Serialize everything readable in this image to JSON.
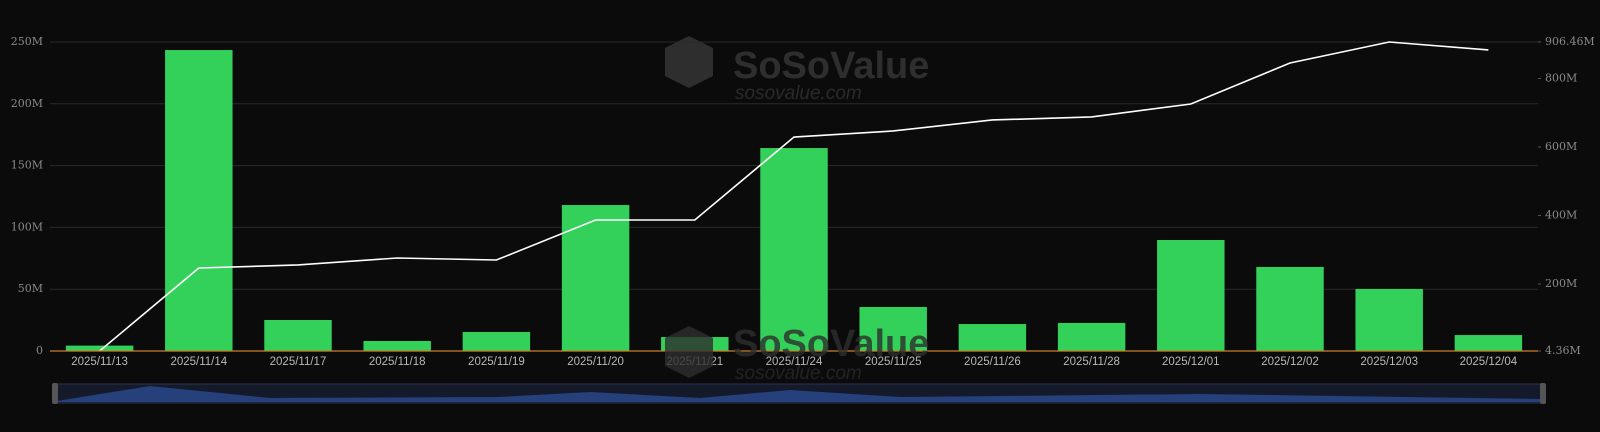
{
  "chart_data": {
    "type": "bar",
    "watermark": "SoSoValue",
    "watermark_url": "sosovalue.com",
    "categories": [
      "2025/11/13",
      "2025/11/14",
      "2025/11/17",
      "2025/11/18",
      "2025/11/19",
      "2025/11/20",
      "2025/11/21",
      "2025/11/24",
      "2025/11/25",
      "2025/11/26",
      "2025/11/28",
      "2025/12/01",
      "2025/12/02",
      "2025/12/03",
      "2025/12/04"
    ],
    "series": [
      {
        "type": "bar",
        "color": "#33d159",
        "values": [
          4.36,
          243.5,
          25.1,
          8.1,
          15.4,
          118.1,
          11.3,
          164.2,
          35.6,
          21.8,
          22.7,
          89.8,
          68.0,
          50.2,
          12.9
        ]
      },
      {
        "type": "line",
        "axis": "y2",
        "color": "#ffffff",
        "values": [
          4.36,
          246.7,
          255.5,
          275.9,
          270,
          386.8,
          386.8,
          629,
          646.7,
          678.8,
          687.6,
          725.5,
          845.2,
          906.46,
          883.2
        ]
      }
    ],
    "ylim": [
      0,
      250
    ],
    "yticks": [
      {
        "value": 0,
        "label": "0"
      },
      {
        "value": 50,
        "label": "50M"
      },
      {
        "value": 100,
        "label": "100M"
      },
      {
        "value": 150,
        "label": "150M"
      },
      {
        "value": 200,
        "label": "200M"
      },
      {
        "value": 250,
        "label": "250M"
      }
    ],
    "y2lim": [
      4.36,
      906.46
    ],
    "y2ticks": [
      {
        "value": 4.36,
        "label": "4.36M"
      },
      {
        "value": 200,
        "label": "200M"
      },
      {
        "value": 400,
        "label": "400M"
      },
      {
        "value": 600,
        "label": "600M"
      },
      {
        "value": 800,
        "label": "800M"
      },
      {
        "value": 906.46,
        "label": "906.46M"
      }
    ],
    "grid": true
  }
}
